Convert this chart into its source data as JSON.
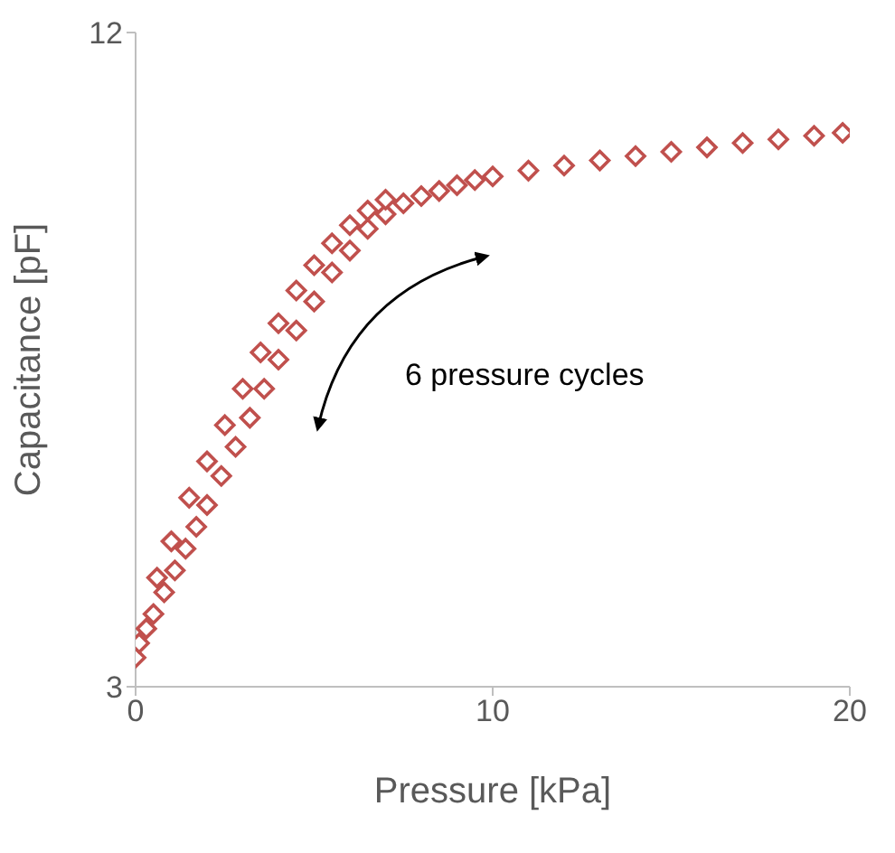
{
  "chart_data": {
    "type": "scatter",
    "xlabel": "Pressure [kPa]",
    "ylabel": "Capacitance [pF]",
    "xlim": [
      0,
      20
    ],
    "xticks": [
      0,
      10,
      20
    ],
    "ylim": [
      3,
      12
    ],
    "yticks": [
      3,
      12
    ],
    "grid": false,
    "legend": false,
    "marker": "diamond",
    "annotations": [
      "6 pressure cycles"
    ],
    "series": [
      {
        "color": "#c0504d",
        "x": [
          0,
          0.1,
          0.3,
          0.5,
          0.8,
          1.1,
          1.4,
          1.7,
          2.0,
          2.4,
          2.8,
          3.2,
          3.6,
          4.0,
          4.5,
          5.0,
          5.5,
          6.0,
          6.5,
          7.0,
          7.5,
          8.0,
          8.5,
          9.0,
          9.5,
          10,
          11,
          12,
          13,
          14,
          15,
          16,
          17,
          18,
          19,
          19.8,
          0.6,
          1.0,
          1.5,
          2.0,
          2.5,
          3.0,
          3.5,
          4.0,
          4.5,
          5.0,
          5.5,
          6.0,
          6.5,
          7.0
        ],
        "values": [
          3.4,
          3.6,
          3.8,
          4.0,
          4.3,
          4.6,
          4.9,
          5.2,
          5.5,
          5.9,
          6.3,
          6.7,
          7.1,
          7.5,
          7.9,
          8.3,
          8.7,
          9.0,
          9.3,
          9.5,
          9.65,
          9.75,
          9.82,
          9.9,
          9.97,
          10.02,
          10.1,
          10.17,
          10.24,
          10.3,
          10.36,
          10.42,
          10.48,
          10.53,
          10.58,
          10.62,
          4.5,
          5.0,
          5.6,
          6.1,
          6.6,
          7.1,
          7.6,
          8.0,
          8.45,
          8.8,
          9.1,
          9.35,
          9.55,
          9.7
        ]
      }
    ]
  }
}
